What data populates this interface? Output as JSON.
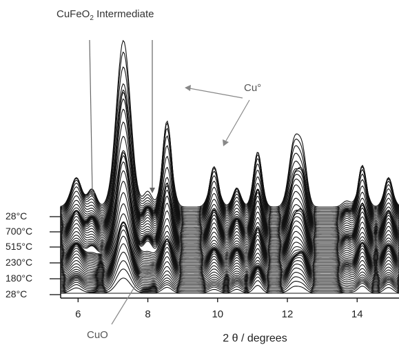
{
  "chart_data": {
    "type": "line",
    "xlabel": "2 θ / degrees",
    "xlim": [
      5.5,
      15.2
    ],
    "x_ticks": [
      "6",
      "8",
      "10",
      "12",
      "14"
    ],
    "temperature_labels": [
      "28°C",
      "700°C",
      "515°C",
      "230°C",
      "180°C",
      "28°C"
    ],
    "series_count": 60,
    "peaks": [
      {
        "x": 5.95,
        "height": 0.55,
        "width": 0.16
      },
      {
        "x": 6.4,
        "height": 0.28,
        "width": 0.12
      },
      {
        "x": 7.3,
        "height": 2.6,
        "width": 0.2
      },
      {
        "x": 8.0,
        "height": 0.3,
        "width": 0.12
      },
      {
        "x": 8.55,
        "height": 1.9,
        "width": 0.14
      },
      {
        "x": 9.9,
        "height": 0.9,
        "width": 0.14
      },
      {
        "x": 10.55,
        "height": 0.4,
        "width": 0.12
      },
      {
        "x": 11.15,
        "height": 0.9,
        "width": 0.12
      },
      {
        "x": 12.2,
        "height": 1.0,
        "width": 0.15
      },
      {
        "x": 12.45,
        "height": 0.8,
        "width": 0.12
      },
      {
        "x": 13.7,
        "height": 0.25,
        "width": 0.12
      },
      {
        "x": 14.15,
        "height": 0.9,
        "width": 0.13
      },
      {
        "x": 14.9,
        "height": 0.6,
        "width": 0.13
      }
    ],
    "annotations": [
      {
        "name": "cufeo2",
        "text": "CuFeO",
        "sub": "2",
        "text_after": " Intermediate"
      },
      {
        "name": "cu",
        "text": "Cu°"
      },
      {
        "name": "cuo",
        "text": "CuO"
      }
    ]
  }
}
